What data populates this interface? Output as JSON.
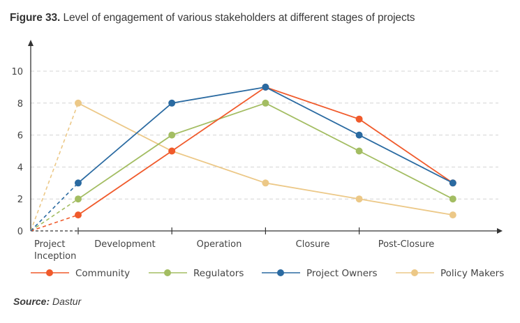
{
  "figure": {
    "label": "Figure 33.",
    "caption": "Level of engagement of various stakeholders at different stages of projects"
  },
  "source": {
    "label": "Source:",
    "value": "Dastur"
  },
  "chart_data": {
    "type": "line",
    "title": "Level of engagement of various stakeholders at different stages of projects",
    "xlabel": "",
    "ylabel": "",
    "categories": [
      "Project Inception",
      "Development",
      "Operation",
      "Closure",
      "Post-Closure"
    ],
    "category_lines": [
      [
        "Project",
        "Inception"
      ],
      [
        "Development"
      ],
      [
        "Operation"
      ],
      [
        "Closure"
      ],
      [
        "Post-Closure"
      ]
    ],
    "ylim": [
      0,
      10
    ],
    "yticks": [
      0,
      2,
      4,
      6,
      8,
      10
    ],
    "grid": true,
    "legend_position": "bottom",
    "origin_value": 0,
    "origin_segment_style": "dashed",
    "series": [
      {
        "name": "Community",
        "color": "#f05a2b",
        "values": [
          1,
          5,
          9,
          7,
          3
        ]
      },
      {
        "name": "Regulators",
        "color": "#a3bd62",
        "values": [
          2,
          6,
          8,
          5,
          2
        ]
      },
      {
        "name": "Project Owners",
        "color": "#2a6aa1",
        "values": [
          3,
          8,
          9,
          6,
          3
        ]
      },
      {
        "name": "Policy Makers",
        "color": "#ecc887",
        "values": [
          8,
          5,
          3,
          2,
          1
        ]
      }
    ]
  }
}
